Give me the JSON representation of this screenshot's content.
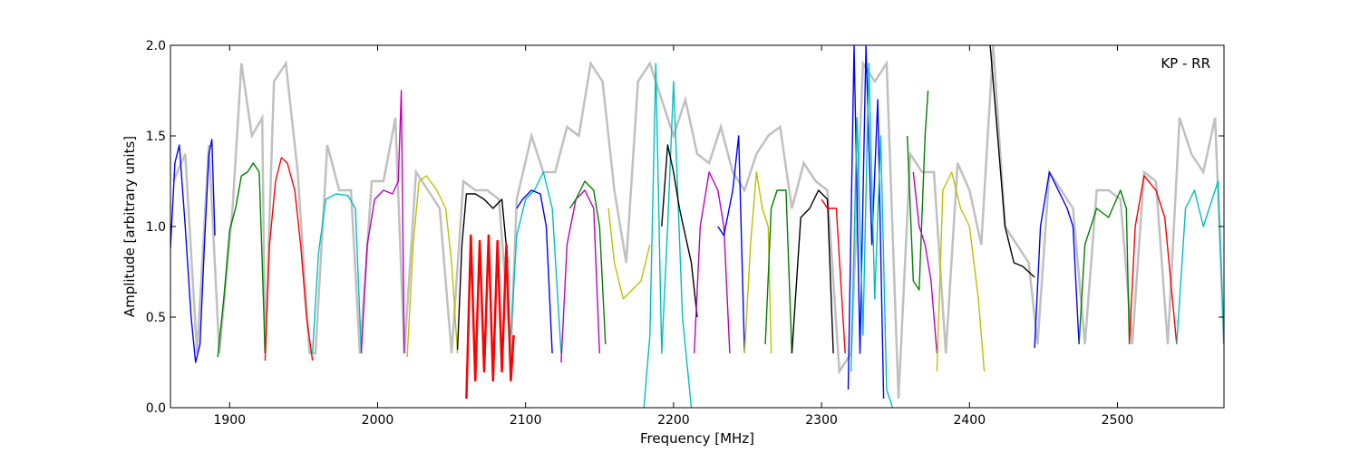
{
  "chart_data": {
    "type": "line",
    "annotation": "KP - RR",
    "xlabel": "Frequency [MHz]",
    "ylabel": "Amplitude [arbitrary units]",
    "xlim": [
      1860,
      2572
    ],
    "ylim": [
      0,
      2.0
    ],
    "xticks": [
      1900,
      2000,
      2100,
      2200,
      2300,
      2400,
      2500
    ],
    "yticks": [
      0.0,
      0.5,
      1.0,
      1.5,
      2.0
    ],
    "xtick_labels": [
      "1900",
      "2000",
      "2100",
      "2200",
      "2300",
      "2400",
      "2500"
    ],
    "ytick_labels": [
      "0.0",
      "0.5",
      "1.0",
      "1.5",
      "2.0"
    ],
    "grid": false,
    "legend": "none",
    "background_envelope": {
      "color": "#c0c0c0",
      "x": [
        1862,
        1870,
        1878,
        1886,
        1893,
        1902,
        1908,
        1915,
        1922,
        1924,
        1930,
        1938,
        1946,
        1954,
        1958,
        1966,
        1974,
        1982,
        1988,
        1996,
        2004,
        2012,
        2018,
        2026,
        2034,
        2042,
        2050,
        2058,
        2066,
        2074,
        2082,
        2090,
        2094,
        2104,
        2112,
        2120,
        2128,
        2136,
        2144,
        2152,
        2160,
        2168,
        2176,
        2184,
        2192,
        2200,
        2208,
        2216,
        2224,
        2232,
        2240,
        2248,
        2256,
        2264,
        2272,
        2280,
        2288,
        2296,
        2304,
        2312,
        2320,
        2328,
        2336,
        2344,
        2352,
        2360,
        2368,
        2376,
        2384,
        2392,
        2400,
        2408,
        2416,
        2424,
        2432,
        2440,
        2446,
        2454,
        2462,
        2470,
        2478,
        2486,
        2494,
        2502,
        2510,
        2518,
        2526,
        2534,
        2542,
        2550,
        2558,
        2566,
        2572
      ],
      "y": [
        1.25,
        1.4,
        0.3,
        1.45,
        0.3,
        1.1,
        1.9,
        1.5,
        1.6,
        0.3,
        1.8,
        1.9,
        1.3,
        0.3,
        0.3,
        1.45,
        1.2,
        1.2,
        0.3,
        1.25,
        1.25,
        1.6,
        0.3,
        1.3,
        1.2,
        1.1,
        0.3,
        1.25,
        1.2,
        1.2,
        1.15,
        0.3,
        1.15,
        1.5,
        1.3,
        1.3,
        1.55,
        1.5,
        1.9,
        1.8,
        1.2,
        0.8,
        1.8,
        1.9,
        1.7,
        1.5,
        1.7,
        1.4,
        1.35,
        1.55,
        1.3,
        1.2,
        1.4,
        1.5,
        1.55,
        1.1,
        1.35,
        1.25,
        1.2,
        0.2,
        0.3,
        1.9,
        1.8,
        1.9,
        0.05,
        1.4,
        1.3,
        1.3,
        0.3,
        1.35,
        1.2,
        0.9,
        2.0,
        1.0,
        0.9,
        0.8,
        0.35,
        1.3,
        1.2,
        1.1,
        0.35,
        1.2,
        1.2,
        1.15,
        0.35,
        1.3,
        1.25,
        0.35,
        1.6,
        1.4,
        1.3,
        1.6,
        0.35
      ]
    },
    "series": [
      {
        "color": "#0000ff",
        "x": [
          1860,
          1863,
          1866,
          1870,
          1874,
          1877,
          1880,
          1883,
          1886,
          1888,
          1890
        ],
        "y": [
          0.88,
          1.35,
          1.45,
          1.0,
          0.5,
          0.25,
          0.35,
          0.9,
          1.4,
          1.48,
          0.95
        ]
      },
      {
        "color": "#008000",
        "x": [
          1892,
          1896,
          1900,
          1904,
          1908,
          1912,
          1916,
          1920,
          1922,
          1924
        ],
        "y": [
          0.28,
          0.6,
          0.98,
          1.1,
          1.28,
          1.3,
          1.35,
          1.3,
          0.8,
          0.3
        ]
      },
      {
        "color": "#ff0000",
        "x": [
          1924,
          1927,
          1931,
          1935,
          1939,
          1944,
          1948,
          1952,
          1956
        ],
        "y": [
          0.26,
          0.9,
          1.25,
          1.38,
          1.35,
          1.2,
          0.9,
          0.5,
          0.26
        ]
      },
      {
        "color": "#00bfbf",
        "x": [
          1956,
          1960,
          1965,
          1972,
          1980,
          1985,
          1989
        ],
        "y": [
          0.3,
          0.85,
          1.15,
          1.18,
          1.17,
          1.1,
          0.3
        ]
      },
      {
        "color": "#bf00bf",
        "x": [
          1989,
          1993,
          1998,
          2004,
          2010,
          2014,
          2016,
          2018
        ],
        "y": [
          0.3,
          0.9,
          1.15,
          1.2,
          1.18,
          1.25,
          1.75,
          0.3
        ]
      },
      {
        "color": "#bfbf00",
        "x": [
          2020,
          2024,
          2028,
          2033,
          2040,
          2046,
          2050,
          2054
        ],
        "y": [
          0.28,
          0.9,
          1.25,
          1.28,
          1.2,
          1.1,
          0.8,
          0.3
        ]
      },
      {
        "color": "#000000",
        "x": [
          2054,
          2057,
          2060,
          2066,
          2072,
          2078,
          2084,
          2088
        ],
        "y": [
          0.32,
          0.9,
          1.18,
          1.18,
          1.15,
          1.1,
          1.15,
          0.8
        ]
      },
      {
        "color": "#ff0000",
        "x": [
          2060,
          2063,
          2066,
          2069,
          2072,
          2075,
          2078,
          2081,
          2084,
          2087,
          2090,
          2092
        ],
        "y": [
          0.05,
          0.95,
          0.15,
          0.92,
          0.2,
          0.95,
          0.15,
          0.92,
          0.2,
          0.9,
          0.15,
          0.4
        ],
        "style": "noisy"
      },
      {
        "color": "#00bfbf",
        "x": [
          2090,
          2094,
          2100,
          2106,
          2112,
          2118,
          2124
        ],
        "y": [
          0.4,
          0.95,
          1.15,
          1.2,
          1.3,
          1.1,
          0.3
        ]
      },
      {
        "color": "#0000ff",
        "x": [
          2094,
          2098,
          2104,
          2110,
          2114,
          2118
        ],
        "y": [
          1.1,
          1.15,
          1.2,
          1.18,
          1.0,
          0.3
        ]
      },
      {
        "color": "#bf00bf",
        "x": [
          2124,
          2128,
          2134,
          2140,
          2146,
          2150
        ],
        "y": [
          0.25,
          0.9,
          1.15,
          1.2,
          1.1,
          0.3
        ]
      },
      {
        "color": "#008000",
        "x": [
          2130,
          2134,
          2140,
          2146,
          2150,
          2154
        ],
        "y": [
          1.1,
          1.15,
          1.25,
          1.2,
          1.0,
          0.35
        ]
      },
      {
        "color": "#bfbf00",
        "x": [
          2156,
          2160,
          2166,
          2172,
          2178,
          2184
        ],
        "y": [
          1.1,
          0.8,
          0.6,
          0.65,
          0.7,
          0.9
        ]
      },
      {
        "color": "#00bfbf",
        "x": [
          2180,
          2184,
          2188,
          2192,
          2196,
          2200,
          2206,
          2212
        ],
        "y": [
          0.0,
          0.4,
          1.9,
          0.3,
          1.0,
          1.8,
          0.5,
          0.0
        ]
      },
      {
        "color": "#000000",
        "x": [
          2192,
          2196,
          2200,
          2204,
          2208,
          2212,
          2216
        ],
        "y": [
          1.0,
          1.45,
          1.3,
          1.1,
          0.95,
          0.8,
          0.5
        ]
      },
      {
        "color": "#bf00bf",
        "x": [
          2214,
          2218,
          2224,
          2230,
          2234,
          2238
        ],
        "y": [
          0.3,
          1.0,
          1.3,
          1.2,
          1.0,
          0.3
        ]
      },
      {
        "color": "#0000ff",
        "x": [
          2230,
          2234,
          2240,
          2244,
          2248
        ],
        "y": [
          1.0,
          0.95,
          1.2,
          1.5,
          0.3
        ]
      },
      {
        "color": "#bfbf00",
        "x": [
          2248,
          2252,
          2256,
          2260,
          2264,
          2266
        ],
        "y": [
          0.3,
          0.9,
          1.3,
          1.1,
          1.0,
          0.3
        ]
      },
      {
        "color": "#008000",
        "x": [
          2262,
          2266,
          2270,
          2276,
          2280
        ],
        "y": [
          0.35,
          1.1,
          1.2,
          1.2,
          0.3
        ]
      },
      {
        "color": "#000000",
        "x": [
          2280,
          2286,
          2292,
          2298,
          2304,
          2308
        ],
        "y": [
          0.3,
          1.05,
          1.1,
          1.2,
          1.15,
          0.3
        ]
      },
      {
        "color": "#ff0000",
        "x": [
          2300,
          2304,
          2310,
          2316
        ],
        "y": [
          1.15,
          1.1,
          1.1,
          0.3
        ]
      },
      {
        "color": "#0000ff",
        "x": [
          2318,
          2322,
          2326,
          2330,
          2334,
          2338,
          2342
        ],
        "y": [
          0.1,
          2.0,
          0.3,
          2.0,
          0.9,
          1.7,
          0.05
        ]
      },
      {
        "color": "#00bfbf",
        "x": [
          2320,
          2324,
          2328,
          2332,
          2336,
          2340,
          2344,
          2348
        ],
        "y": [
          0.2,
          1.6,
          0.4,
          1.9,
          0.6,
          1.5,
          0.1,
          0.0
        ]
      },
      {
        "color": "#008000",
        "x": [
          2358,
          2362,
          2366,
          2370,
          2372
        ],
        "y": [
          1.5,
          0.7,
          0.65,
          1.5,
          1.75
        ]
      },
      {
        "color": "#bf00bf",
        "x": [
          2362,
          2366,
          2370,
          2374,
          2378
        ],
        "y": [
          1.3,
          1.0,
          0.9,
          0.7,
          0.3
        ]
      },
      {
        "color": "#bfbf00",
        "x": [
          2378,
          2382,
          2388,
          2394,
          2400,
          2406,
          2410
        ],
        "y": [
          0.2,
          1.2,
          1.3,
          1.1,
          1.0,
          0.6,
          0.2
        ]
      },
      {
        "color": "#000000",
        "x": [
          2414,
          2418,
          2424,
          2430,
          2436,
          2444
        ],
        "y": [
          2.0,
          1.6,
          1.0,
          0.8,
          0.78,
          0.72
        ]
      },
      {
        "color": "#0000ff",
        "x": [
          2444,
          2448,
          2454,
          2460,
          2466,
          2470,
          2474
        ],
        "y": [
          0.33,
          1.0,
          1.3,
          1.2,
          1.1,
          1.0,
          0.35
        ]
      },
      {
        "color": "#008000",
        "x": [
          2474,
          2478,
          2486,
          2494,
          2502,
          2506,
          2508
        ],
        "y": [
          0.35,
          0.9,
          1.1,
          1.05,
          1.2,
          1.1,
          0.35
        ]
      },
      {
        "color": "#ff0000",
        "x": [
          2508,
          2512,
          2518,
          2526,
          2532,
          2540
        ],
        "y": [
          0.35,
          1.0,
          1.28,
          1.2,
          1.05,
          0.35
        ]
      },
      {
        "color": "#00bfbf",
        "x": [
          2540,
          2546,
          2552,
          2558,
          2564,
          2568,
          2572
        ],
        "y": [
          0.35,
          1.1,
          1.2,
          1.0,
          1.15,
          1.25,
          0.35
        ]
      }
    ]
  }
}
